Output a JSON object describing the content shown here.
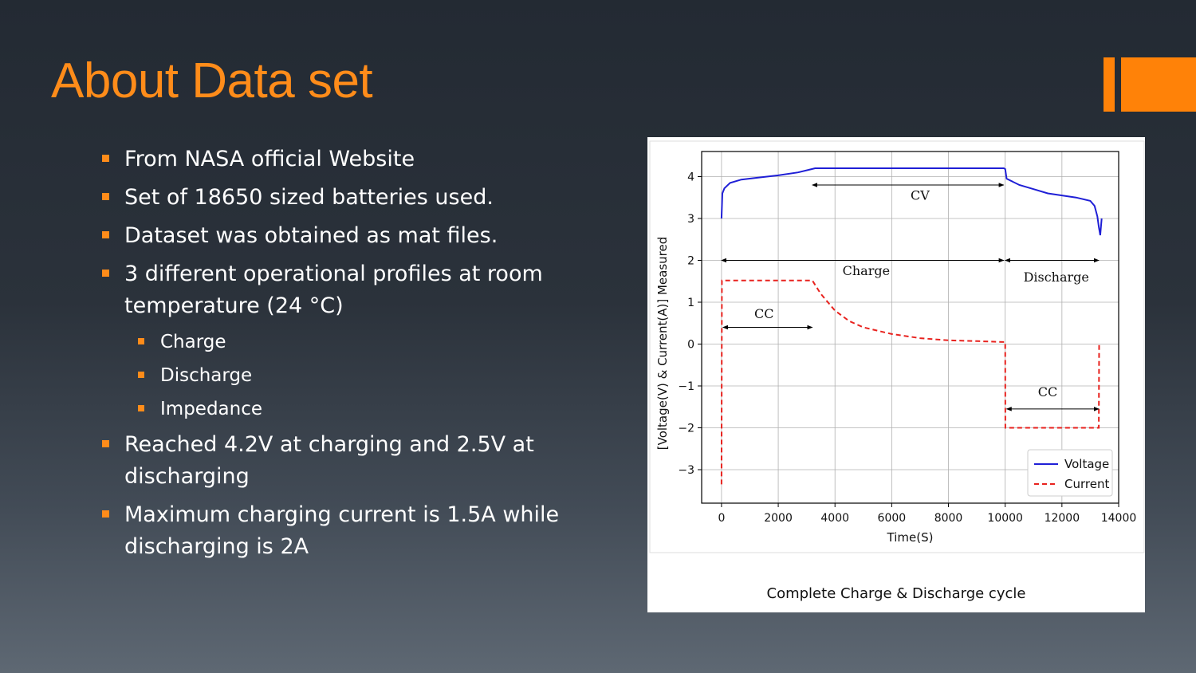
{
  "slide": {
    "title": "About Data set",
    "accent_color": "#ff8208",
    "bullets": [
      {
        "text": "From NASA official Website",
        "level": 1
      },
      {
        "text": "Set of 18650 sized batteries used.",
        "level": 1
      },
      {
        "text": "Dataset was obtained as mat files.",
        "level": 1
      },
      {
        "text": "3 different operational profiles at room temperature (24 °C)",
        "level": 1
      },
      {
        "text": "Charge",
        "level": 2
      },
      {
        "text": "Discharge",
        "level": 2
      },
      {
        "text": "Impedance",
        "level": 2
      },
      {
        "text": "Reached 4.2V at charging and 2.5V at discharging",
        "level": 1
      },
      {
        "text": "Maximum charging current is 1.5A while discharging is 2A",
        "level": 1
      }
    ],
    "figure_caption": "Complete Charge & Discharge cycle"
  },
  "chart_data": {
    "type": "line",
    "title": "",
    "xlabel": "Time(S)",
    "ylabel": "[Voltage(V) & Current(A)] Measured",
    "xlim": [
      -700,
      14000
    ],
    "ylim": [
      -3.8,
      4.6
    ],
    "xticks": [
      0,
      2000,
      4000,
      6000,
      8000,
      10000,
      12000,
      14000
    ],
    "yticks": [
      -3,
      -2,
      -1,
      0,
      1,
      2,
      3,
      4
    ],
    "grid": true,
    "legend_position": "lower-right",
    "series": [
      {
        "name": "Voltage",
        "color": "#1f1fd6",
        "style": "solid",
        "points": [
          [
            0,
            3.0
          ],
          [
            30,
            3.6
          ],
          [
            100,
            3.72
          ],
          [
            300,
            3.85
          ],
          [
            700,
            3.93
          ],
          [
            1200,
            3.97
          ],
          [
            2000,
            4.03
          ],
          [
            2700,
            4.1
          ],
          [
            3300,
            4.2
          ],
          [
            5000,
            4.2
          ],
          [
            7000,
            4.2
          ],
          [
            9950,
            4.2
          ],
          [
            10000,
            4.18
          ],
          [
            10050,
            3.95
          ],
          [
            10500,
            3.8
          ],
          [
            11000,
            3.7
          ],
          [
            11500,
            3.6
          ],
          [
            12000,
            3.55
          ],
          [
            12500,
            3.5
          ],
          [
            13000,
            3.42
          ],
          [
            13150,
            3.3
          ],
          [
            13250,
            3.05
          ],
          [
            13300,
            2.8
          ],
          [
            13350,
            2.6
          ],
          [
            13400,
            3.0
          ]
        ]
      },
      {
        "name": "Current",
        "color": "#e8221e",
        "style": "dashed",
        "points": [
          [
            0,
            -3.35
          ],
          [
            15,
            1.52
          ],
          [
            3200,
            1.52
          ],
          [
            3500,
            1.2
          ],
          [
            4000,
            0.8
          ],
          [
            4500,
            0.55
          ],
          [
            5000,
            0.4
          ],
          [
            6000,
            0.24
          ],
          [
            7000,
            0.14
          ],
          [
            8000,
            0.09
          ],
          [
            9000,
            0.07
          ],
          [
            9950,
            0.05
          ],
          [
            10000,
            0.05
          ],
          [
            10005,
            -2.0
          ],
          [
            13300,
            -2.0
          ],
          [
            13310,
            0.0
          ]
        ]
      }
    ],
    "annotations": [
      {
        "label": "CV",
        "from": 3200,
        "to": 9950,
        "y": 3.8,
        "text_x": 7000,
        "text_y": 3.45
      },
      {
        "label": "Charge",
        "from": 0,
        "to": 9950,
        "y": 2.0,
        "text_x": 5100,
        "text_y": 1.65
      },
      {
        "label": "Discharge",
        "from": 10000,
        "to": 13300,
        "y": 2.0,
        "text_x": 11800,
        "text_y": 1.5
      },
      {
        "label": "CC",
        "from": 50,
        "to": 3200,
        "y": 0.4,
        "text_x": 1500,
        "text_y": 0.62
      },
      {
        "label": "CC",
        "from": 10050,
        "to": 13300,
        "y": -1.55,
        "text_x": 11500,
        "text_y": -1.25
      }
    ]
  }
}
